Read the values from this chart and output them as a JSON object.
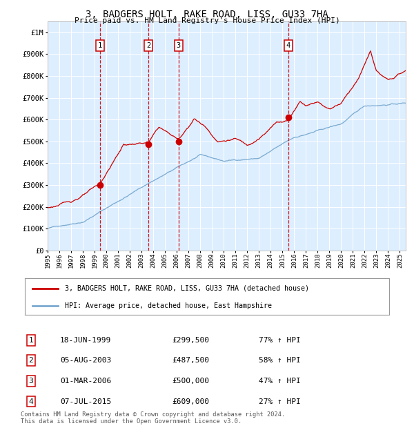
{
  "title": "3, BADGERS HOLT, RAKE ROAD, LISS, GU33 7HA",
  "subtitle": "Price paid vs. HM Land Registry's House Price Index (HPI)",
  "ylim": [
    0,
    1050000
  ],
  "xlim_start": 1995.0,
  "xlim_end": 2025.5,
  "yticks": [
    0,
    100000,
    200000,
    300000,
    400000,
    500000,
    600000,
    700000,
    800000,
    900000,
    1000000
  ],
  "ytick_labels": [
    "£0",
    "£100K",
    "£200K",
    "£300K",
    "£400K",
    "£500K",
    "£600K",
    "£700K",
    "£800K",
    "£900K",
    "£1M"
  ],
  "xtick_years": [
    1995,
    1996,
    1997,
    1998,
    1999,
    2000,
    2001,
    2002,
    2003,
    2004,
    2005,
    2006,
    2007,
    2008,
    2009,
    2010,
    2011,
    2012,
    2013,
    2014,
    2015,
    2016,
    2017,
    2018,
    2019,
    2020,
    2021,
    2022,
    2023,
    2024,
    2025
  ],
  "sale_dates": [
    1999.46,
    2003.59,
    2006.16,
    2015.51
  ],
  "sale_prices": [
    299500,
    487500,
    500000,
    609000
  ],
  "sale_labels": [
    "1",
    "2",
    "3",
    "4"
  ],
  "red_line_color": "#cc0000",
  "blue_line_color": "#7aaad0",
  "plot_bg_color": "#ddeeff",
  "grid_color": "#c8d8e8",
  "dashed_line_color": "#cc0000",
  "legend_entries": [
    "3, BADGERS HOLT, RAKE ROAD, LISS, GU33 7HA (detached house)",
    "HPI: Average price, detached house, East Hampshire"
  ],
  "table_rows": [
    [
      "1",
      "18-JUN-1999",
      "£299,500",
      "77% ↑ HPI"
    ],
    [
      "2",
      "05-AUG-2003",
      "£487,500",
      "58% ↑ HPI"
    ],
    [
      "3",
      "01-MAR-2006",
      "£500,000",
      "47% ↑ HPI"
    ],
    [
      "4",
      "07-JUL-2015",
      "£609,000",
      "27% ↑ HPI"
    ]
  ],
  "footer": "Contains HM Land Registry data © Crown copyright and database right 2024.\nThis data is licensed under the Open Government Licence v3.0."
}
